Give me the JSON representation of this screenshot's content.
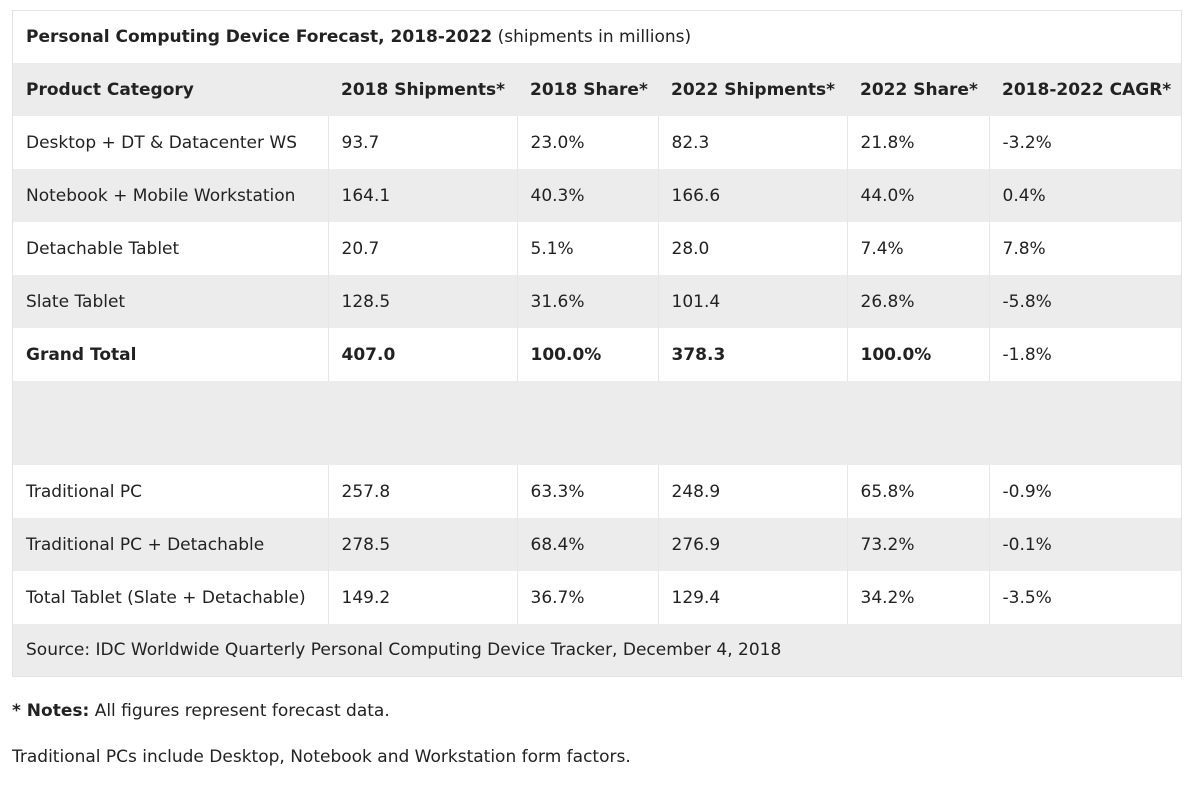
{
  "caption": {
    "title": "Personal Computing Device Forecast, 2018-2022",
    "subtitle": "(shipments in millions)"
  },
  "columns": [
    "Product Category",
    "2018 Shipments*",
    "2018 Share*",
    "2022 Shipments*",
    "2022 Share*",
    "2018-2022 CAGR*"
  ],
  "rows": [
    [
      "Desktop + DT & Datacenter WS",
      "93.7",
      "23.0%",
      "82.3",
      "21.8%",
      "-3.2%"
    ],
    [
      "Notebook + Mobile Workstation",
      "164.1",
      "40.3%",
      "166.6",
      "44.0%",
      "0.4%"
    ],
    [
      "Detachable Tablet",
      "20.7",
      "5.1%",
      "28.0",
      "7.4%",
      "7.8%"
    ],
    [
      "Slate Tablet",
      "128.5",
      "31.6%",
      "101.4",
      "26.8%",
      "-5.8%"
    ],
    [
      "Grand Total",
      "407.0",
      "100.0%",
      "378.3",
      "100.0%",
      "-1.8%"
    ]
  ],
  "extra_rows": [
    [
      "Traditional PC",
      "257.8",
      "63.3%",
      "248.9",
      "65.8%",
      "-0.9%"
    ],
    [
      "Traditional PC + Detachable",
      "278.5",
      "68.4%",
      "276.9",
      "73.2%",
      "-0.1%"
    ],
    [
      "Total Tablet (Slate + Detachable)",
      "149.2",
      "36.7%",
      "129.4",
      "34.2%",
      "-3.5%"
    ]
  ],
  "source": "Source: IDC Worldwide Quarterly Personal Computing Device Tracker, December 4, 2018",
  "notes": {
    "label": "* Notes:",
    "text": "All figures represent forecast data.",
    "line2": "Traditional PCs include Desktop, Notebook and Workstation form factors."
  }
}
